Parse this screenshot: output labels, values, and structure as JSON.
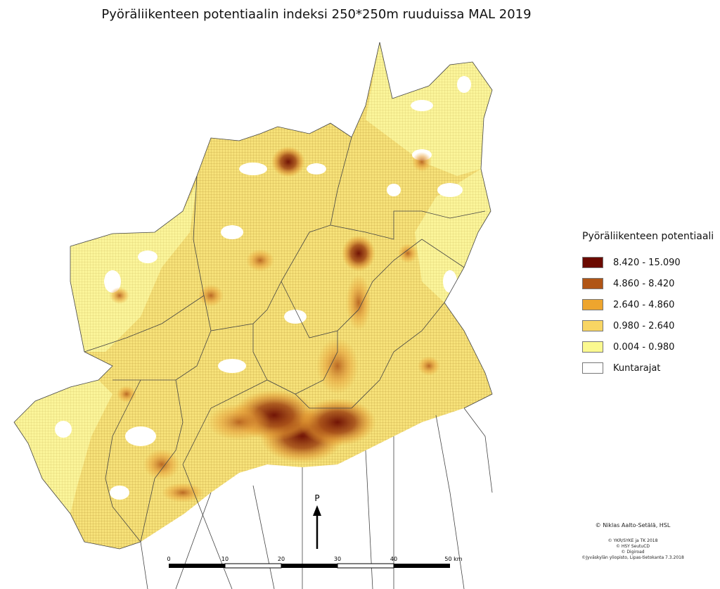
{
  "title": "Pyöräliikenteen potentiaalin indeksi 250*250m ruuduissa MAL 2019",
  "legend": {
    "title": "Pyöräliikenteen potentiaali",
    "classes": [
      {
        "label": "8.420 - 15.090",
        "color": "#6b0a00"
      },
      {
        "label": "4.860 - 8.420",
        "color": "#b05516"
      },
      {
        "label": "2.640 - 4.860",
        "color": "#eea52e"
      },
      {
        "label": "0.980 - 2.640",
        "color": "#f8d563"
      },
      {
        "label": "0.004 - 0.980",
        "color": "#fbf98f"
      },
      {
        "label": "Kuntarajat",
        "color": "#ffffff"
      }
    ]
  },
  "north_arrow": {
    "label": "P"
  },
  "scale_bar": {
    "ticks": [
      "0",
      "10",
      "20",
      "30",
      "40",
      "50 km"
    ]
  },
  "copyright": {
    "author": "© Niklas Aalto-Setälä, HSL",
    "sources": [
      "© YKR/SYKE ja TK 2018",
      "© HSY SeutuCD",
      "© Digiroad",
      "©Jyväskylän yliopisto, Lipas-tietokanta 7.3.2018"
    ]
  }
}
